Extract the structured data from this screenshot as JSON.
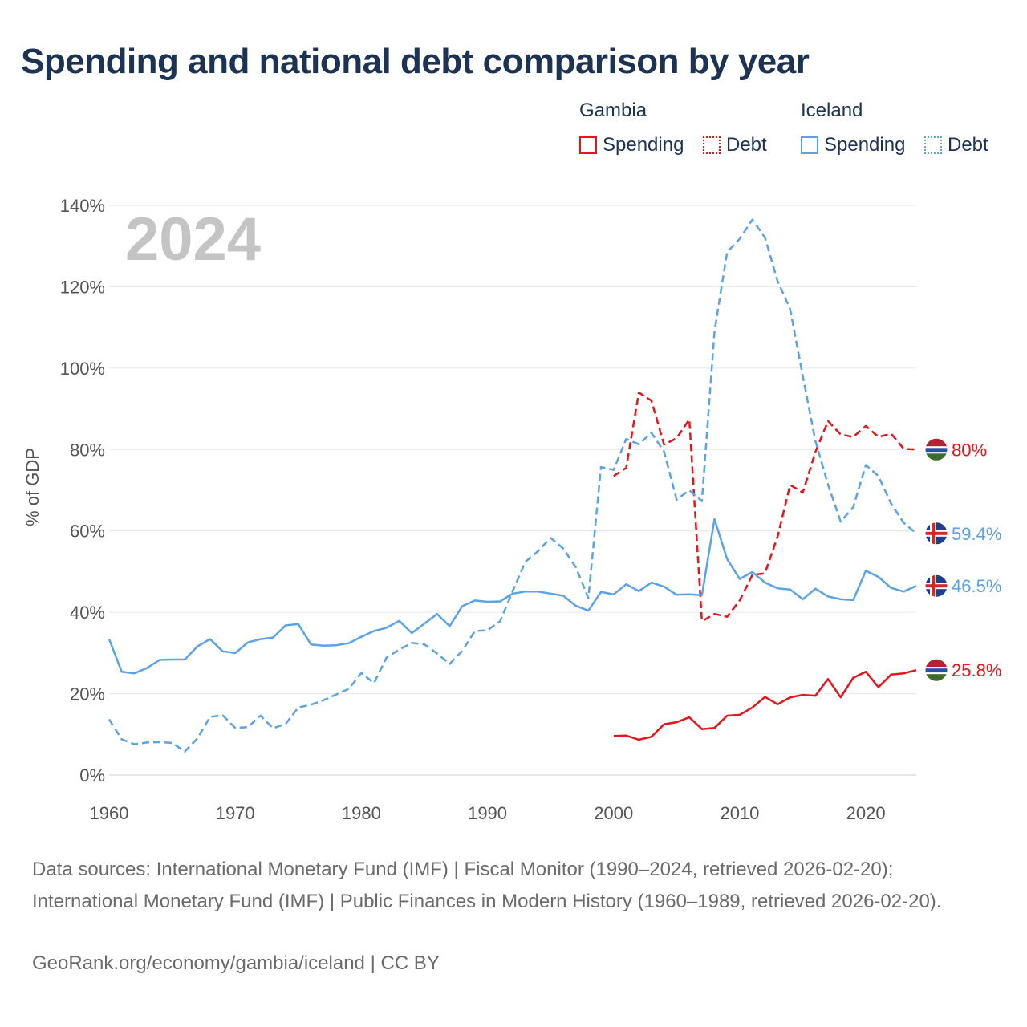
{
  "title": "Spending and national debt comparison by year",
  "legend": {
    "groups": [
      {
        "name": "Gambia",
        "color": "#e8141b",
        "spending_label": "Spending",
        "debt_label": "Debt"
      },
      {
        "name": "Iceland",
        "color": "#5ba2e6",
        "spending_label": "Spending",
        "debt_label": "Debt"
      }
    ]
  },
  "watermark_year": "2024",
  "footer": {
    "sources": "Data sources: International Monetary Fund (IMF) | Fiscal Monitor (1990–2024, retrieved 2026-02-20); International Monetary Fund (IMF) | Public Finances in Modern History (1960–1989, retrieved 2026-02-20).",
    "credit": "GeoRank.org/economy/gambia/iceland | CC BY"
  },
  "chart_data": {
    "type": "line",
    "title": "Spending and national debt comparison by year",
    "ylabel": "% of GDP",
    "xlabel": "",
    "xlim": [
      1960,
      2024
    ],
    "ylim": [
      0,
      140
    ],
    "x_ticks": [
      1960,
      1970,
      1980,
      1990,
      2000,
      2010,
      2020
    ],
    "y_ticks": [
      0,
      20,
      40,
      60,
      80,
      100,
      120,
      140
    ],
    "y_tick_labels": [
      "0%",
      "20%",
      "40%",
      "60%",
      "80%",
      "100%",
      "120%",
      "140%"
    ],
    "grid": true,
    "legend_position": "top-right",
    "series": [
      {
        "name": "Gambia Spending",
        "country": "Gambia",
        "kind": "spending",
        "dash": false,
        "color": "#e8141b",
        "end_label": "25.8%",
        "flag": "gambia",
        "x": [
          2000,
          2001,
          2002,
          2003,
          2004,
          2005,
          2006,
          2007,
          2008,
          2009,
          2010,
          2011,
          2012,
          2013,
          2014,
          2015,
          2016,
          2017,
          2018,
          2019,
          2020,
          2021,
          2022,
          2023,
          2024
        ],
        "values": [
          9.6,
          9.7,
          8.7,
          9.4,
          12.5,
          13.0,
          14.2,
          11.3,
          11.6,
          14.6,
          14.8,
          16.6,
          19.2,
          17.4,
          19.1,
          19.7,
          19.5,
          23.6,
          19.1,
          23.9,
          25.4,
          21.6,
          24.7,
          25.0,
          25.8
        ]
      },
      {
        "name": "Gambia Debt",
        "country": "Gambia",
        "kind": "debt",
        "dash": true,
        "color": "#e8141b",
        "end_label": "80%",
        "flag": "gambia",
        "x": [
          2000,
          2001,
          2002,
          2003,
          2004,
          2005,
          2006,
          2007,
          2008,
          2009,
          2010,
          2011,
          2012,
          2013,
          2014,
          2015,
          2016,
          2017,
          2018,
          2019,
          2020,
          2021,
          2022,
          2023,
          2024
        ],
        "values": [
          73.5,
          75.5,
          94.0,
          92.0,
          81.2,
          82.8,
          87.4,
          37.8,
          39.6,
          38.9,
          42.9,
          49.2,
          49.6,
          58.6,
          71.3,
          69.4,
          79.4,
          87.0,
          83.7,
          83.1,
          85.8,
          83.1,
          83.9,
          80.2,
          80.0
        ]
      },
      {
        "name": "Iceland Spending",
        "country": "Iceland",
        "kind": "spending",
        "dash": false,
        "color": "#5ba2e6",
        "end_label": "46.5%",
        "flag": "iceland",
        "x": [
          1960,
          1961,
          1962,
          1963,
          1964,
          1965,
          1966,
          1967,
          1968,
          1969,
          1970,
          1971,
          1972,
          1973,
          1974,
          1975,
          1976,
          1977,
          1978,
          1979,
          1980,
          1981,
          1982,
          1983,
          1984,
          1985,
          1986,
          1987,
          1988,
          1989,
          1990,
          1991,
          1992,
          1993,
          1994,
          1995,
          1996,
          1997,
          1998,
          1999,
          2000,
          2001,
          2002,
          2003,
          2004,
          2005,
          2006,
          2007,
          2008,
          2009,
          2010,
          2011,
          2012,
          2013,
          2014,
          2015,
          2016,
          2017,
          2018,
          2019,
          2020,
          2021,
          2022,
          2023,
          2024
        ],
        "values": [
          33.4,
          25.4,
          25.0,
          26.3,
          28.3,
          28.4,
          28.4,
          31.6,
          33.4,
          30.4,
          30.0,
          32.6,
          33.4,
          33.8,
          36.8,
          37.1,
          32.1,
          31.8,
          31.9,
          32.4,
          34.0,
          35.4,
          36.2,
          37.9,
          34.9,
          37.2,
          39.6,
          36.6,
          41.5,
          42.9,
          42.6,
          42.7,
          44.6,
          45.1,
          45.1,
          44.6,
          44.1,
          41.6,
          40.4,
          45.0,
          44.4,
          46.9,
          45.2,
          47.3,
          46.3,
          44.3,
          44.4,
          44.2,
          62.9,
          53.1,
          48.2,
          49.9,
          47.3,
          45.9,
          45.6,
          43.2,
          45.8,
          43.9,
          43.2,
          43.0,
          50.2,
          48.7,
          46.0,
          45.1,
          46.5
        ]
      },
      {
        "name": "Iceland Debt",
        "country": "Iceland",
        "kind": "debt",
        "dash": true,
        "color": "#5ba2e6",
        "end_label": "59.4%",
        "flag": "iceland",
        "x": [
          1960,
          1961,
          1962,
          1963,
          1964,
          1965,
          1966,
          1967,
          1968,
          1969,
          1970,
          1971,
          1972,
          1973,
          1974,
          1975,
          1976,
          1977,
          1978,
          1979,
          1980,
          1981,
          1982,
          1983,
          1984,
          1985,
          1986,
          1987,
          1988,
          1989,
          1990,
          1991,
          1992,
          1993,
          1994,
          1995,
          1996,
          1997,
          1998,
          1999,
          2000,
          2001,
          2002,
          2003,
          2004,
          2005,
          2006,
          2007,
          2008,
          2009,
          2010,
          2011,
          2012,
          2013,
          2014,
          2015,
          2016,
          2017,
          2018,
          2019,
          2020,
          2021,
          2022,
          2023,
          2024
        ],
        "values": [
          13.7,
          8.8,
          7.6,
          8.0,
          8.1,
          7.9,
          5.8,
          9.0,
          14.3,
          14.7,
          11.6,
          11.8,
          14.6,
          11.5,
          12.6,
          16.6,
          17.3,
          18.4,
          19.8,
          21.2,
          25.1,
          22.6,
          28.9,
          30.8,
          32.5,
          32.1,
          29.9,
          27.3,
          30.5,
          35.4,
          35.6,
          37.8,
          45.2,
          52.4,
          55.0,
          58.3,
          55.7,
          51.1,
          43.5,
          75.7,
          75.0,
          82.6,
          81.3,
          84.1,
          79.5,
          67.7,
          70.0,
          67.3,
          109.0,
          128.5,
          131.8,
          136.5,
          132.1,
          121.4,
          114.5,
          98.1,
          82.1,
          71.4,
          62.3,
          65.8,
          76.2,
          73.5,
          66.7,
          62.0,
          59.4
        ]
      }
    ]
  }
}
